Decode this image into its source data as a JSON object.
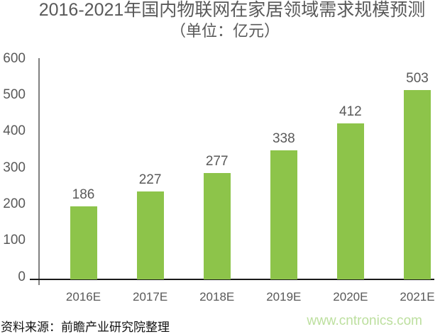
{
  "title": "2016-2021年国内物联网在家居领域需求规模预测",
  "subtitle": "（单位：亿元）",
  "chart_data": {
    "type": "bar",
    "categories": [
      "2016E",
      "2017E",
      "2018E",
      "2019E",
      "2020E",
      "2021E"
    ],
    "values": [
      186,
      227,
      277,
      338,
      412,
      503
    ],
    "title": "2016-2021年国内物联网在家居领域需求规模预测",
    "subtitle": "（单位：亿元）",
    "xlabel": "",
    "ylabel": "",
    "ylim": [
      0,
      600
    ],
    "ytick_step": 100,
    "grid": false,
    "legend": false,
    "bar_color": "#8DC44A",
    "label_color": "#595959"
  },
  "footer": {
    "source": "资料来源：前瞻产业研究院整理",
    "watermark": "www.cntronics.com",
    "watermark_color": "#BCDF9E"
  }
}
